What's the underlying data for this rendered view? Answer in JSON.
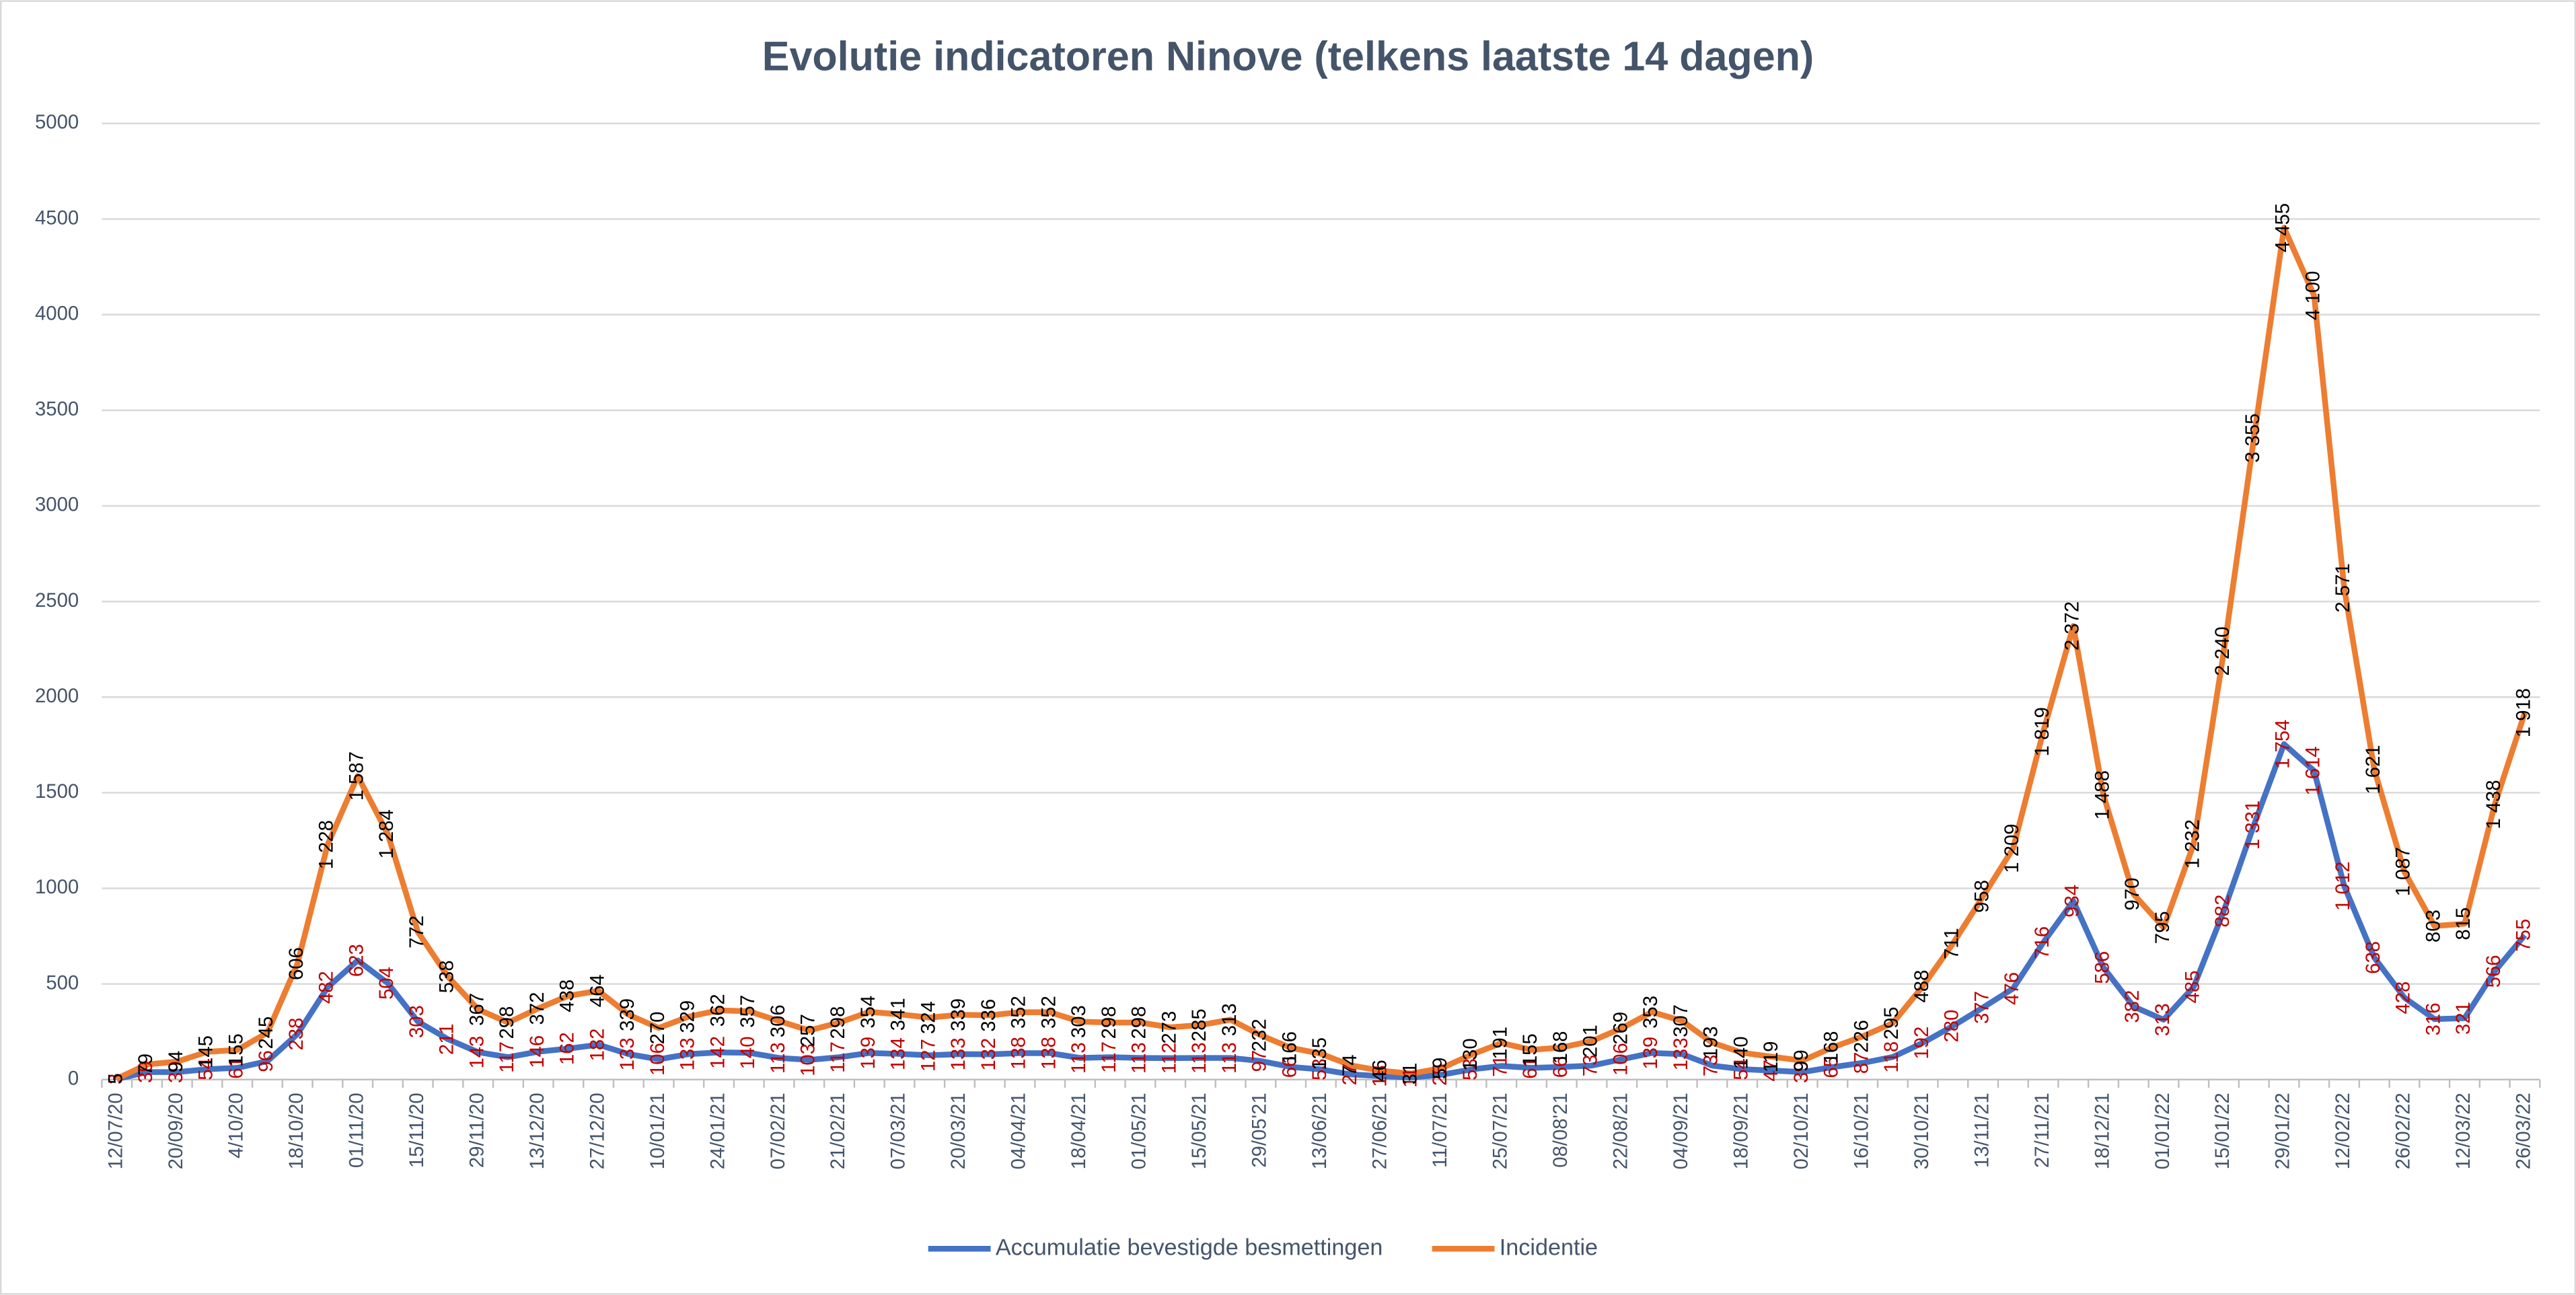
{
  "chart_data": {
    "type": "line",
    "title": "Evolutie indicatoren Ninove (telkens laatste 14 dagen)",
    "categories": [
      "12/07/20",
      null,
      "20/09/20",
      null,
      "4/10/20",
      null,
      "18/10/20",
      null,
      "01/11/20",
      null,
      "15/11/20",
      null,
      "29/11/20",
      null,
      "13/12/20",
      null,
      "27/12/20",
      null,
      "10/01/21",
      null,
      "24/01/21",
      null,
      "07/02/21",
      null,
      "21/02/21",
      null,
      "07/03/21",
      null,
      "20/03/21",
      null,
      "04/04/21",
      null,
      "18/04/21",
      null,
      "01/05/21",
      null,
      "15/05/21",
      null,
      "29/05'21",
      null,
      "13/06/21",
      null,
      "27/06/21",
      null,
      "11/07/21",
      null,
      "25/07/21",
      null,
      "08/08'21",
      null,
      "22/08/21",
      null,
      "04/09/21",
      null,
      "18/09/21",
      null,
      "02/10/21",
      null,
      "16/10/21",
      null,
      "30/10/21",
      null,
      "13/11/21",
      null,
      "27/11/21",
      null,
      "18/12/21",
      null,
      "01/01/22",
      null,
      "15/01/22",
      null,
      "29/01/22",
      null,
      "12/02/22",
      null,
      "26/02/22",
      null,
      "12/03/22",
      null,
      "26/03/22"
    ],
    "series": [
      {
        "name": "Accumulatie bevestigde besmettingen",
        "color": "#4472c4",
        "label_color": "#c00000",
        "values": [
          3,
          39,
          39,
          54,
          61,
          96,
          238,
          482,
          623,
          504,
          303,
          211,
          143,
          117,
          146,
          162,
          182,
          133,
          106,
          133,
          142,
          140,
          113,
          103,
          117,
          139,
          134,
          127,
          133,
          132,
          138,
          138,
          113,
          117,
          113,
          112,
          113,
          113,
          97,
          66,
          53,
          27,
          18,
          11,
          25,
          53,
          71,
          61,
          66,
          73,
          106,
          139,
          133,
          73,
          54,
          47,
          39,
          65,
          87,
          118,
          192,
          280,
          377,
          476,
          716,
          934,
          586,
          382,
          313,
          485,
          882,
          1331,
          1754,
          1614,
          1012,
          638,
          428,
          316,
          321,
          566,
          755
        ],
        "value_labels": [
          "3",
          "39",
          "39",
          "54",
          "61",
          "96",
          "238",
          "482",
          "623",
          "504",
          "303",
          "211",
          "143",
          "117",
          "146",
          "162",
          "182",
          "133",
          "106",
          "133",
          "142",
          "140",
          "113",
          "103",
          "117",
          "139",
          "134",
          "127",
          "133",
          "132",
          "138",
          "138",
          "113",
          "117",
          "113",
          "112",
          "113",
          "113",
          "97",
          "66",
          "53",
          "27",
          "18",
          "11",
          "25",
          "53",
          "71",
          "61",
          "66",
          "73",
          "106",
          "139",
          "133",
          "73",
          "54",
          "47",
          "39",
          "65",
          "87",
          "118",
          "192",
          "280",
          "377",
          "476",
          "716",
          "934",
          "586",
          "382",
          "313",
          "485",
          "882",
          "1 331",
          "1 754",
          "1 614",
          "1 012",
          "638",
          "428",
          "316",
          "321",
          "566",
          "755"
        ]
      },
      {
        "name": "Incidentie",
        "color": "#ed7d31",
        "label_color": "#000000",
        "values": [
          5,
          79,
          94,
          145,
          155,
          245,
          606,
          1228,
          1587,
          1284,
          772,
          538,
          367,
          298,
          372,
          438,
          464,
          339,
          270,
          329,
          362,
          357,
          306,
          257,
          298,
          354,
          341,
          324,
          339,
          336,
          352,
          352,
          303,
          298,
          298,
          273,
          285,
          313,
          232,
          166,
          135,
          74,
          46,
          31,
          59,
          130,
          191,
          155,
          168,
          201,
          269,
          353,
          307,
          193,
          140,
          119,
          99,
          168,
          226,
          295,
          488,
          711,
          958,
          1209,
          1819,
          2372,
          1488,
          970,
          795,
          1232,
          2240,
          3355,
          4455,
          4100,
          2571,
          1621,
          1087,
          803,
          815,
          1438,
          1918
        ],
        "value_labels": [
          "5",
          "79",
          "94",
          "145",
          "155",
          "245",
          "606",
          "1 228",
          "1 587",
          "1 284",
          "772",
          "538",
          "367",
          "298",
          "372",
          "438",
          "464",
          "339",
          "270",
          "329",
          "362",
          "357",
          "306",
          "257",
          "298",
          "354",
          "341",
          "324",
          "339",
          "336",
          "352",
          "352",
          "303",
          "298",
          "298",
          "273",
          "285",
          "313",
          "232",
          "166",
          "135",
          "74",
          "46",
          "31",
          "59",
          "130",
          "191",
          "155",
          "168",
          "201",
          "269",
          "353",
          "307",
          "193",
          "140",
          "119",
          "99",
          "168",
          "226",
          "295",
          "488",
          "711",
          "958",
          "1 209",
          "1 819",
          "2 372",
          "1 488",
          "970",
          "795",
          "1 232",
          "2 240",
          "3 355",
          "4 455",
          "4 100",
          "2 571",
          "1 621",
          "1 087",
          "803",
          "815",
          "1 438",
          "1 918"
        ]
      }
    ],
    "ylim": [
      0,
      5000
    ],
    "yticks": [
      0,
      500,
      1000,
      1500,
      2000,
      2500,
      3000,
      3500,
      4000,
      4500,
      5000
    ],
    "grid": true,
    "legend": "bottom"
  }
}
